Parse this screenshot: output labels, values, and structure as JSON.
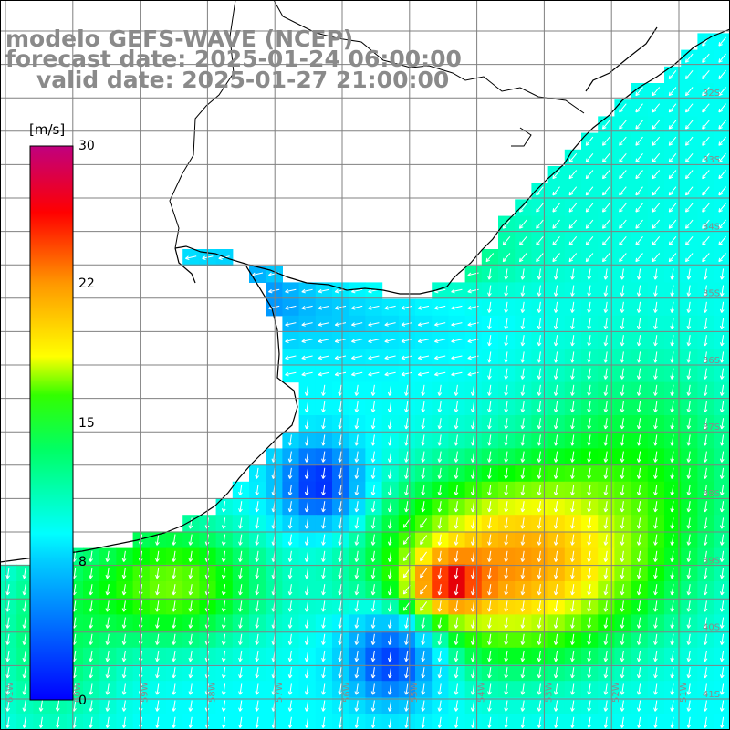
{
  "title": {
    "line1": "modelo GEFS-WAVE (NCEP)",
    "line2": "forecast date: 2025-01-24 06:00:00",
    "line3": "valid date: 2025-01-27 21:00:00"
  },
  "colorbar": {
    "units": "[m/s]",
    "ticks": [
      {
        "label": "30",
        "value": 30
      },
      {
        "label": "22",
        "value": 22
      },
      {
        "label": "15",
        "value": 15
      },
      {
        "label": "8",
        "value": 8
      },
      {
        "label": "0",
        "value": 0
      }
    ],
    "colors": [
      "#0000ff",
      "#00ffff",
      "#00ff00",
      "#ffff00",
      "#ff0000",
      "#c0007f"
    ]
  },
  "latitude_labels": [
    "32S",
    "33S",
    "34S",
    "35S",
    "36S",
    "37S",
    "38S",
    "39S",
    "40S",
    "41S"
  ],
  "longitude_labels": [
    "61W",
    "60W",
    "59W",
    "58W",
    "57W",
    "56W",
    "55W",
    "54W",
    "53W",
    "52W",
    "51W"
  ],
  "colors": {
    "land": "#ffffff",
    "coastline": "#000000",
    "grid": "#808080",
    "arrows": "#ffffff",
    "title": "#8a8a8a"
  }
}
